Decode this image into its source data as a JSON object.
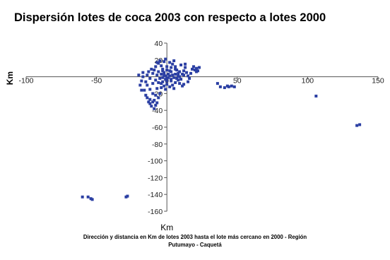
{
  "chart_data": {
    "type": "scatter",
    "title": "Dispersión lotes de coca 2003 con respecto a lotes  2000",
    "xlabel": "Km",
    "ylabel": "Km",
    "caption": [
      "Dirección y distancia en Km de lotes 2003 hasta el lote más cercano en 2000 - Región",
      "Putumayo - Caquetá"
    ],
    "xlim": [
      -100,
      150
    ],
    "ylim": [
      -160,
      40
    ],
    "xticks": [
      -100,
      -50,
      0,
      50,
      100,
      150
    ],
    "yticks": [
      40,
      20,
      0,
      -20,
      -40,
      -60,
      -80,
      -100,
      -120,
      -140,
      -160
    ],
    "x_tick_labels": [
      "-100",
      "-50",
      "0",
      "50",
      "100",
      "150"
    ],
    "y_tick_labels": [
      "40",
      "20",
      "0",
      "-20",
      "-40",
      "-60",
      "-80",
      "-100",
      "-120",
      "-140",
      "-160"
    ],
    "grid": false,
    "marker_color": "#2b3fa3",
    "series": [
      {
        "points": [
          [
            -60,
            -143
          ],
          [
            -56,
            -143
          ],
          [
            -54,
            -145
          ],
          [
            -53,
            -146
          ],
          [
            -29,
            -143
          ],
          [
            -28,
            -142
          ],
          [
            -14,
            -25
          ],
          [
            -12,
            -27
          ],
          [
            -10,
            -30
          ],
          [
            -12,
            -32
          ],
          [
            -9,
            -28
          ],
          [
            -8,
            -34
          ],
          [
            -11,
            -35
          ],
          [
            -13,
            -30
          ],
          [
            -9,
            -38
          ],
          [
            -7,
            -31
          ],
          [
            -15,
            -22
          ],
          [
            -10,
            -20
          ],
          [
            -8,
            -22
          ],
          [
            -6,
            -25
          ],
          [
            -5,
            -20
          ],
          [
            -16,
            -16
          ],
          [
            -12,
            -15
          ],
          [
            -7,
            -14
          ],
          [
            -4,
            -13
          ],
          [
            -2,
            -11
          ],
          [
            -14,
            -10
          ],
          [
            -10,
            -8
          ],
          [
            -6,
            -7
          ],
          [
            -3,
            -6
          ],
          [
            0,
            -5
          ],
          [
            3,
            -5
          ],
          [
            6,
            -7
          ],
          [
            9,
            -8
          ],
          [
            12,
            -9
          ],
          [
            2,
            -12
          ],
          [
            5,
            -14
          ],
          [
            -1,
            -15
          ],
          [
            -18,
            -5
          ],
          [
            -17,
            0
          ],
          [
            -17,
            5
          ],
          [
            -14,
            2
          ],
          [
            -12,
            -2
          ],
          [
            -10,
            4
          ],
          [
            -9,
            8
          ],
          [
            -8,
            12
          ],
          [
            -6,
            16
          ],
          [
            -5,
            19
          ],
          [
            -4,
            13
          ],
          [
            -3,
            9
          ],
          [
            -2,
            5
          ],
          [
            -1,
            1
          ],
          [
            0,
            -2
          ],
          [
            1,
            3
          ],
          [
            2,
            7
          ],
          [
            3,
            11
          ],
          [
            4,
            15
          ],
          [
            5,
            19
          ],
          [
            6,
            12
          ],
          [
            7,
            8
          ],
          [
            8,
            4
          ],
          [
            9,
            0
          ],
          [
            10,
            -3
          ],
          [
            11,
            3
          ],
          [
            12,
            7
          ],
          [
            13,
            11
          ],
          [
            14,
            5
          ],
          [
            15,
            1
          ],
          [
            16,
            -2
          ],
          [
            17,
            4
          ],
          [
            18,
            9
          ],
          [
            19,
            12
          ],
          [
            20,
            8
          ],
          [
            21,
            10
          ],
          [
            22,
            7
          ],
          [
            23,
            11
          ],
          [
            -7,
            2
          ],
          [
            -5,
            -2
          ],
          [
            -4,
            3
          ],
          [
            -3,
            -1
          ],
          [
            -2,
            2
          ],
          [
            -1,
            -3
          ],
          [
            1,
            -1
          ],
          [
            2,
            1
          ],
          [
            3,
            -3
          ],
          [
            4,
            2
          ],
          [
            5,
            -1
          ],
          [
            6,
            3
          ],
          [
            7,
            -2
          ],
          [
            8,
            1
          ],
          [
            -6,
            6
          ],
          [
            -3,
            7
          ],
          [
            0,
            8
          ],
          [
            3,
            6
          ],
          [
            6,
            9
          ],
          [
            9,
            6
          ],
          [
            12,
            2
          ],
          [
            -8,
            -4
          ],
          [
            -4,
            -8
          ],
          [
            0,
            -9
          ],
          [
            4,
            -10
          ],
          [
            8,
            -4
          ],
          [
            -11,
            9
          ],
          [
            -13,
            6
          ],
          [
            -15,
            -6
          ],
          [
            10,
            14
          ],
          [
            13,
            15
          ],
          [
            2,
            17
          ],
          [
            -2,
            18
          ],
          [
            -7,
            17
          ],
          [
            0,
            12
          ],
          [
            -20,
            2
          ],
          [
            -19,
            -10
          ],
          [
            -18,
            -16
          ],
          [
            15,
            -6
          ],
          [
            11,
            -11
          ],
          [
            21,
            6
          ],
          [
            -1,
            21
          ],
          [
            36,
            -8
          ],
          [
            38,
            -12
          ],
          [
            41,
            -13
          ],
          [
            43,
            -11
          ],
          [
            44,
            -12
          ],
          [
            46,
            -11
          ],
          [
            48,
            -12
          ],
          [
            106,
            -23
          ],
          [
            135,
            -58
          ],
          [
            137,
            -57
          ]
        ]
      }
    ]
  }
}
